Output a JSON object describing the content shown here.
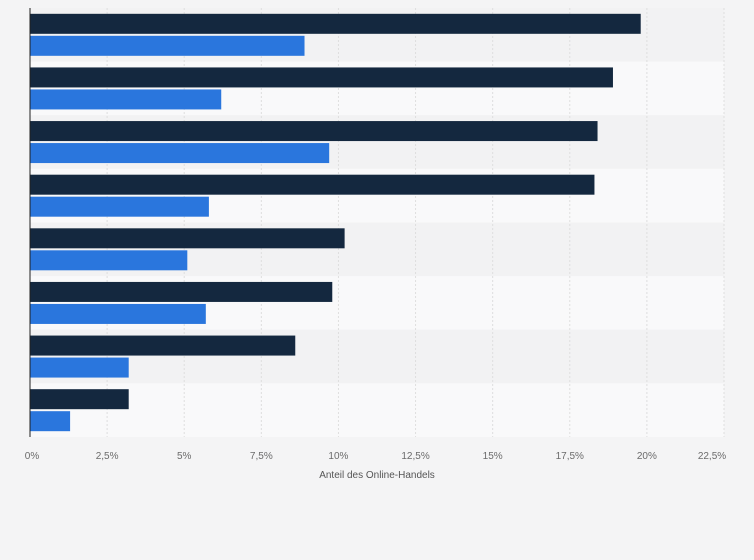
{
  "chart_data": {
    "type": "bar",
    "orientation": "horizontal",
    "title": "",
    "xlabel": "Anteil des Online-Handels",
    "ylabel": "",
    "categories": [
      "",
      "",
      "",
      "",
      "",
      "",
      "",
      ""
    ],
    "series": [
      {
        "name": "series-dark",
        "color": "#14283f",
        "values": [
          19.8,
          18.9,
          18.4,
          18.3,
          10.2,
          9.8,
          8.6,
          3.2
        ]
      },
      {
        "name": "series-blue",
        "color": "#2a76dd",
        "values": [
          8.9,
          6.2,
          9.7,
          5.8,
          5.1,
          5.7,
          3.2,
          1.3
        ]
      }
    ],
    "xlim": [
      0,
      22.5
    ],
    "xticks": [
      0,
      2.5,
      5,
      7.5,
      10,
      12.5,
      15,
      17.5,
      20,
      22.5
    ],
    "xtick_labels": [
      "0%",
      "2,5%",
      "5%",
      "7,5%",
      "10%",
      "12,5%",
      "15%",
      "17,5%",
      "20%",
      "22,5%"
    ],
    "grid": true,
    "legend": "none"
  },
  "colors": {
    "background": "#f4f4f5",
    "band_light": "#f9f9fa",
    "band_dark": "#f2f2f3",
    "grid": "#dedede",
    "axis": "#1f1f1f"
  }
}
